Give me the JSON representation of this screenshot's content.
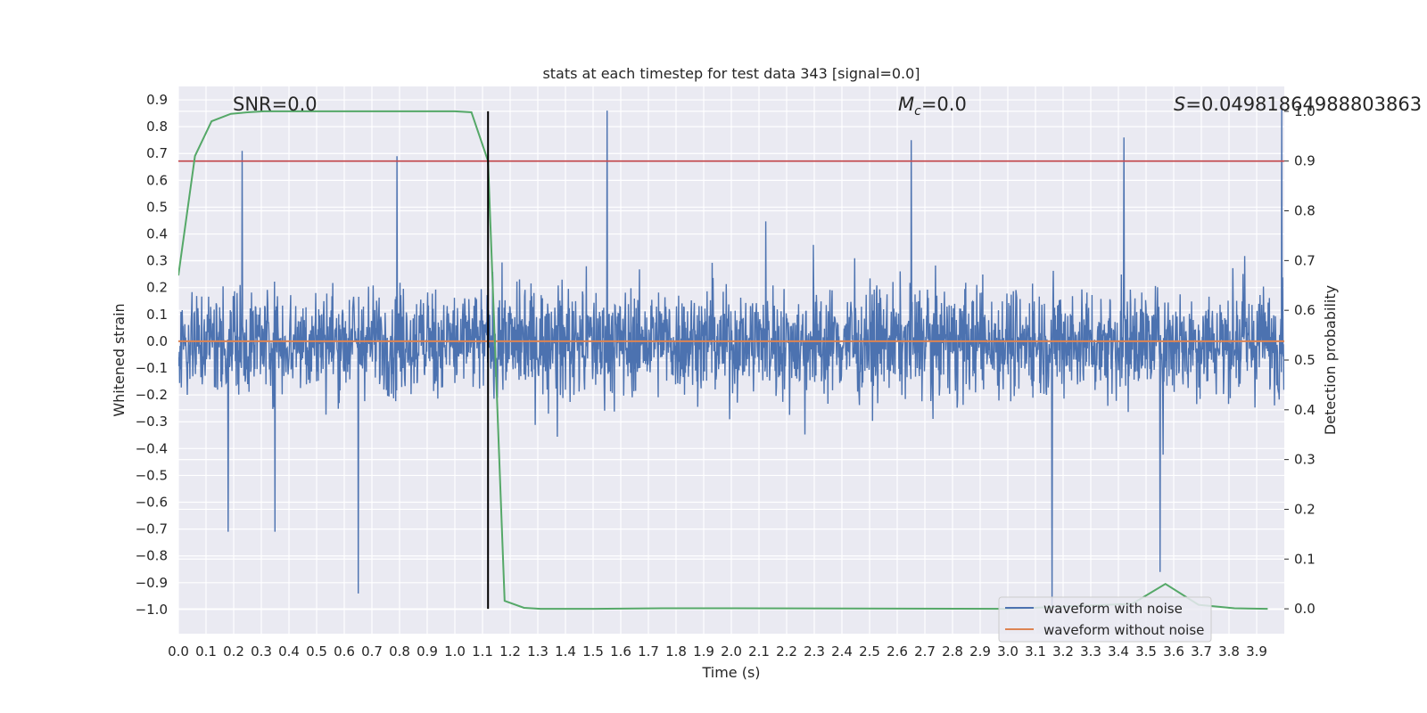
{
  "chart_data": {
    "type": "line",
    "title": "stats at each timestep for test data 343 [signal=0.0]",
    "xlabel": "Time (s)",
    "ylabel": "Whitened strain",
    "y2label": "Detection probability",
    "xlim": [
      0.0,
      4.0
    ],
    "ylim": [
      -1.09,
      0.95
    ],
    "y2lim": [
      -0.05,
      1.05
    ],
    "xticks": [
      "0.0",
      "0.1",
      "0.2",
      "0.3",
      "0.4",
      "0.5",
      "0.6",
      "0.7",
      "0.8",
      "0.9",
      "1.0",
      "1.1",
      "1.2",
      "1.3",
      "1.4",
      "1.5",
      "1.6",
      "1.7",
      "1.8",
      "1.9",
      "2.0",
      "2.1",
      "2.2",
      "2.3",
      "2.4",
      "2.5",
      "2.6",
      "2.7",
      "2.8",
      "2.9",
      "3.0",
      "3.1",
      "3.2",
      "3.3",
      "3.4",
      "3.5",
      "3.6",
      "3.7",
      "3.8",
      "3.9"
    ],
    "yticks": [
      "0.9",
      "0.8",
      "0.7",
      "0.6",
      "0.5",
      "0.4",
      "0.3",
      "0.2",
      "0.1",
      "0.0",
      "−0.1",
      "−0.2",
      "−0.3",
      "−0.4",
      "−0.5",
      "−0.6",
      "−0.7",
      "−0.8",
      "−0.9",
      "−1.0"
    ],
    "y2ticks": [
      "0.0",
      "0.1",
      "0.2",
      "0.3",
      "0.4",
      "0.5",
      "0.6",
      "0.7",
      "0.8",
      "0.9",
      "1.0"
    ],
    "grid": true,
    "legend_position": "lower-right",
    "annotations": {
      "snr": "SNR=0.0",
      "mc_symbol": "M",
      "mc_sub": "c",
      "mc_value": "=0.0",
      "s_symbol": "S",
      "s_value": "=0.04981864988803863"
    },
    "series": [
      {
        "name": "waveform with noise",
        "color": "#4c72b0",
        "axis": "left",
        "description": "dense whitened noise, mostly within ±0.5, occasional spikes",
        "peaks": [
          {
            "x": 0.18,
            "y": -0.71
          },
          {
            "x": 0.23,
            "y": 0.71
          },
          {
            "x": 0.35,
            "y": -0.71
          },
          {
            "x": 0.65,
            "y": -0.94
          },
          {
            "x": 0.79,
            "y": 0.69
          },
          {
            "x": 1.55,
            "y": 0.86
          },
          {
            "x": 2.65,
            "y": 0.75
          },
          {
            "x": 3.16,
            "y": -1.0
          },
          {
            "x": 3.42,
            "y": 0.76
          },
          {
            "x": 3.55,
            "y": -0.86
          },
          {
            "x": 3.99,
            "y": 0.87
          }
        ]
      },
      {
        "name": "waveform without noise",
        "color": "#dd8452",
        "axis": "left",
        "x": [
          0.0,
          4.0
        ],
        "y": [
          0.0,
          0.0
        ]
      },
      {
        "name": "",
        "color": "#55a868",
        "axis": "right",
        "x": [
          0.0,
          0.06,
          0.12,
          0.19,
          0.25,
          0.31,
          0.5,
          1.0,
          1.06,
          1.12,
          1.18,
          1.25,
          1.31,
          1.5,
          1.75,
          2.0,
          3.0,
          3.45,
          3.57,
          3.69,
          3.82,
          3.94
        ],
        "y": [
          0.67,
          0.91,
          0.98,
          0.995,
          0.998,
          1.0,
          1.0,
          1.0,
          0.998,
          0.9,
          0.016,
          0.002,
          0.0,
          0.0,
          0.001,
          0.001,
          0.0,
          0.01,
          0.05,
          0.008,
          0.001,
          0.0
        ]
      },
      {
        "name": "",
        "color": "#c44e52",
        "axis": "right",
        "x": [
          0.0,
          4.0
        ],
        "y": [
          0.9,
          0.9
        ]
      }
    ],
    "vertical_line": {
      "x": 1.12,
      "color": "#000000"
    }
  }
}
